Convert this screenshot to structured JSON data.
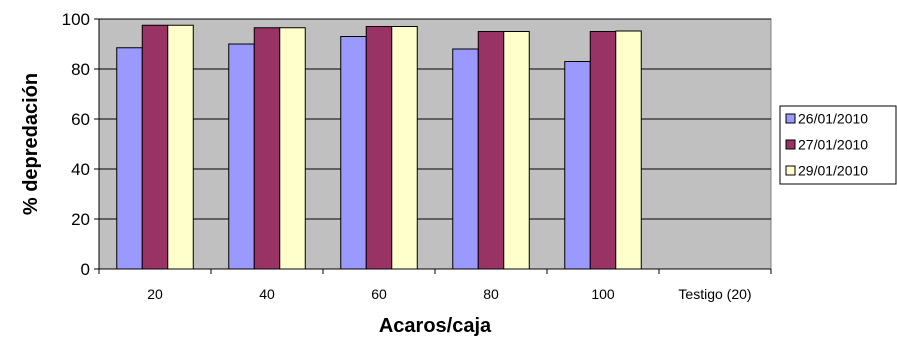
{
  "chart_data": {
    "type": "bar",
    "title": "",
    "xlabel": "Acaros/caja",
    "ylabel": "% depredación",
    "ylim": [
      0,
      100
    ],
    "yticks": [
      0,
      20,
      40,
      60,
      80,
      100
    ],
    "grid": true,
    "legend_position": "right",
    "categories": [
      "20",
      "40",
      "60",
      "80",
      "100",
      "Testigo (20)"
    ],
    "series": [
      {
        "name": "26/01/2010",
        "color": "#9999ff",
        "values": [
          88.5,
          90,
          93,
          88,
          83,
          null
        ]
      },
      {
        "name": "27/01/2010",
        "color": "#993366",
        "values": [
          97.5,
          96.5,
          97,
          95,
          95,
          null
        ]
      },
      {
        "name": "29/01/2010",
        "color": "#ffffcc",
        "values": [
          97.5,
          96.5,
          97,
          95,
          95.2,
          null
        ]
      }
    ],
    "plot_background": "#c0c0c0"
  }
}
